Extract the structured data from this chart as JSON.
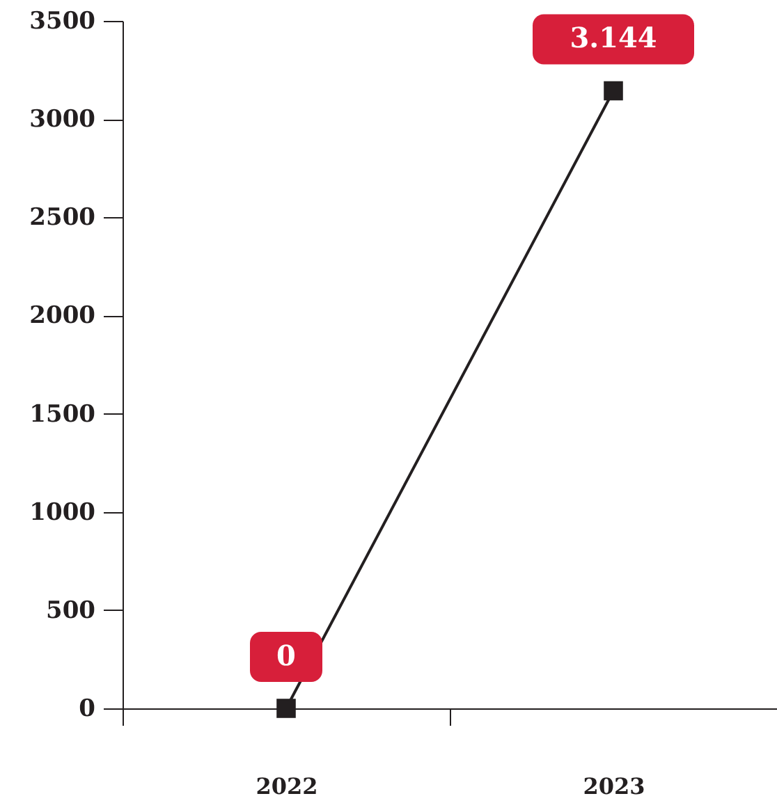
{
  "chart_data": {
    "type": "line",
    "categories": [
      "2022",
      "2023"
    ],
    "series": [
      {
        "color": "#231f20",
        "values": [
          0,
          3144
        ]
      }
    ],
    "value_labels": [
      "0",
      "3.144"
    ],
    "ylim": [
      0,
      3500
    ],
    "yticks": [
      0,
      500,
      1000,
      1500,
      2000,
      2500,
      3000,
      3500
    ],
    "marker": "square",
    "grid": false
  }
}
